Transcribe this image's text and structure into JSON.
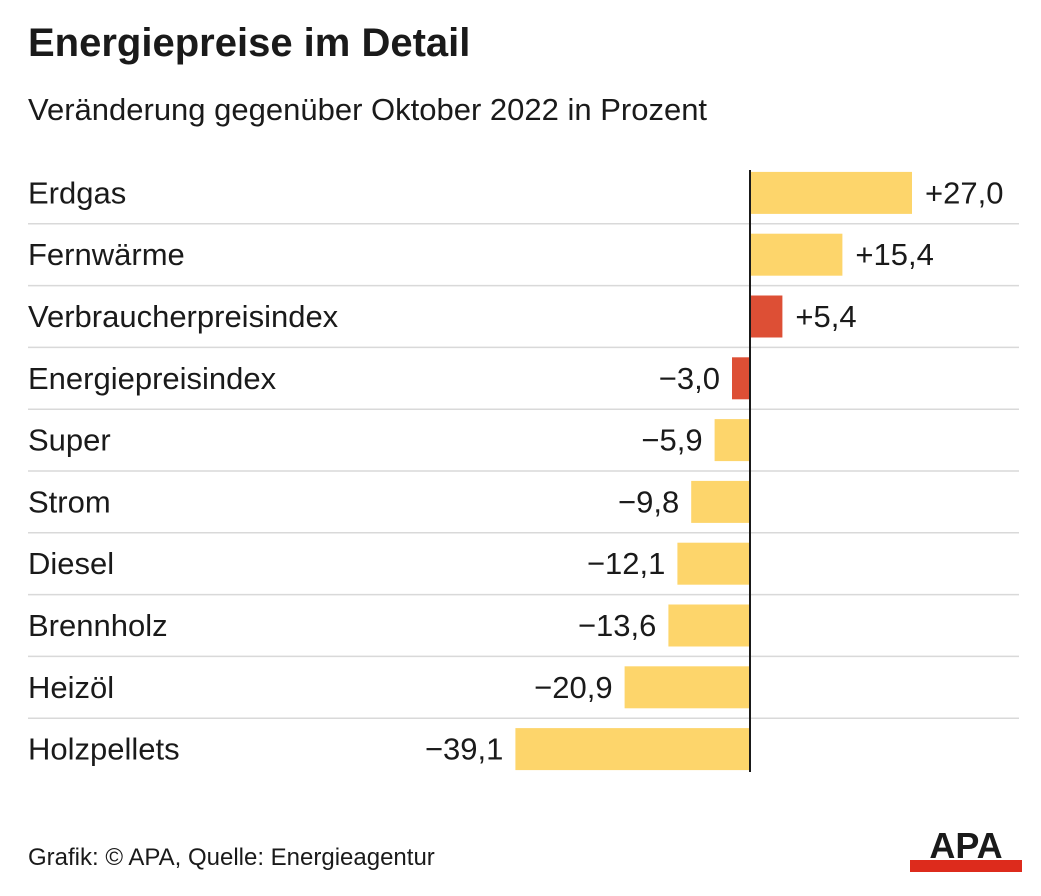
{
  "title": "Energiepreise im Detail",
  "subtitle": "Veränderung gegenüber Oktober 2022 in Prozent",
  "footer": "Grafik: © APA, Quelle: Energieagentur",
  "logo_text": "APA",
  "colors": {
    "positive_bar": "#fdd56b",
    "highlight_bar": "#dd4f35",
    "axis": "#1a1a1a",
    "row_divider": "#d9d9d9",
    "logo_red": "#dd2b1c"
  },
  "chart_data": {
    "type": "bar",
    "orientation": "horizontal",
    "title": "Energiepreise im Detail",
    "subtitle": "Veränderung gegenüber Oktober 2022 in Prozent",
    "xlabel": "",
    "ylabel": "",
    "categories": [
      "Erdgas",
      "Fernwärme",
      "Verbraucherpreisindex",
      "Energiepreisindex",
      "Super",
      "Strom",
      "Diesel",
      "Brennholz",
      "Heizöl",
      "Holzpellets"
    ],
    "values": [
      27.0,
      15.4,
      5.4,
      -3.0,
      -5.9,
      -9.8,
      -12.1,
      -13.6,
      -20.9,
      -39.1
    ],
    "value_labels": [
      "+27,0",
      "+15,4",
      "+5,4",
      "−3,0",
      "−5,9",
      "−9,8",
      "−12,1",
      "−13,6",
      "−20,9",
      "−39,1"
    ],
    "highlighted": [
      "Verbraucherpreisindex",
      "Energiepreisindex"
    ],
    "grid": false
  }
}
